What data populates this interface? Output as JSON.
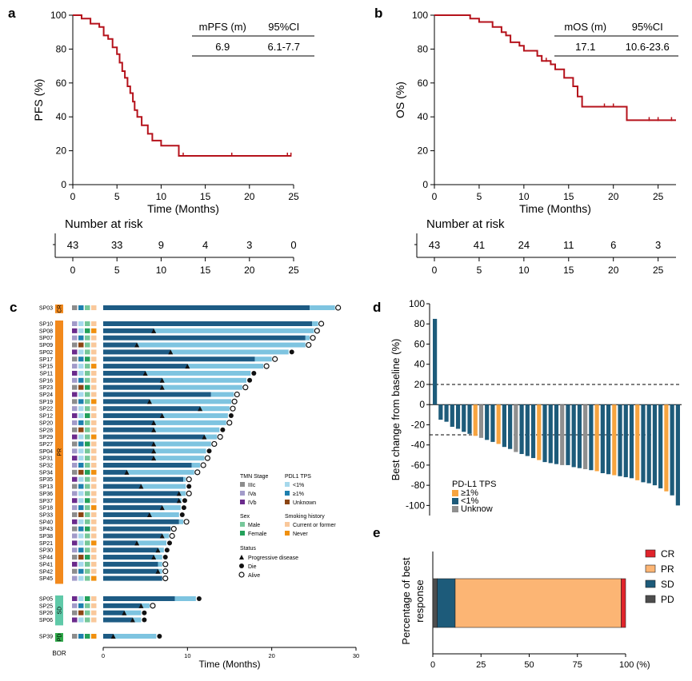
{
  "panels": {
    "a": "a",
    "b": "b",
    "c": "c",
    "d": "d",
    "e": "e"
  },
  "chart_data": [
    {
      "id": "a",
      "type": "line",
      "ylabel": "PFS (%)",
      "xlabel": "Time (Months)",
      "xlim": [
        0,
        25
      ],
      "ylim": [
        0,
        100
      ],
      "xticks": [
        0,
        5,
        10,
        15,
        20,
        25
      ],
      "yticks": [
        0,
        20,
        40,
        60,
        80,
        100
      ],
      "color": "#b5121b",
      "steps": [
        [
          0,
          100
        ],
        [
          1,
          100
        ],
        [
          1,
          98
        ],
        [
          2,
          98
        ],
        [
          2,
          95
        ],
        [
          3,
          95
        ],
        [
          3,
          93
        ],
        [
          3.5,
          93
        ],
        [
          3.5,
          88
        ],
        [
          4,
          88
        ],
        [
          4,
          86
        ],
        [
          4.5,
          86
        ],
        [
          4.5,
          81
        ],
        [
          5,
          81
        ],
        [
          5,
          77
        ],
        [
          5.3,
          77
        ],
        [
          5.3,
          72
        ],
        [
          5.6,
          72
        ],
        [
          5.6,
          67
        ],
        [
          5.9,
          67
        ],
        [
          5.9,
          63
        ],
        [
          6.2,
          63
        ],
        [
          6.2,
          58
        ],
        [
          6.5,
          58
        ],
        [
          6.5,
          54
        ],
        [
          6.8,
          54
        ],
        [
          6.8,
          49
        ],
        [
          7,
          49
        ],
        [
          7,
          44
        ],
        [
          7.3,
          44
        ],
        [
          7.3,
          40
        ],
        [
          7.8,
          40
        ],
        [
          7.8,
          35
        ],
        [
          8.5,
          35
        ],
        [
          8.5,
          30
        ],
        [
          9,
          30
        ],
        [
          9,
          26
        ],
        [
          10,
          26
        ],
        [
          10,
          23
        ],
        [
          12,
          23
        ],
        [
          12,
          17
        ],
        [
          24.7,
          17
        ]
      ],
      "censored": [
        [
          12.5,
          17
        ],
        [
          18,
          17
        ],
        [
          24.3,
          17
        ],
        [
          24.7,
          17
        ]
      ],
      "table": {
        "headers": [
          "mPFS (m)",
          "95%CI"
        ],
        "values": [
          "6.9",
          "6.1-7.7"
        ]
      },
      "risk": {
        "title": "Number at risk",
        "ticks": [
          0,
          5,
          10,
          15,
          20,
          25
        ],
        "counts": [
          "43",
          "33",
          "9",
          "4",
          "3",
          "0"
        ]
      }
    },
    {
      "id": "b",
      "type": "line",
      "ylabel": "OS (%)",
      "xlabel": "Time (Months)",
      "xlim": [
        0,
        27
      ],
      "ylim": [
        0,
        100
      ],
      "xticks": [
        0,
        5,
        10,
        15,
        20,
        25
      ],
      "yticks": [
        0,
        20,
        40,
        60,
        80,
        100
      ],
      "color": "#b5121b",
      "steps": [
        [
          0,
          100
        ],
        [
          4,
          100
        ],
        [
          4,
          98
        ],
        [
          5,
          98
        ],
        [
          5,
          96
        ],
        [
          6.5,
          96
        ],
        [
          6.5,
          93
        ],
        [
          7.5,
          93
        ],
        [
          7.5,
          90
        ],
        [
          8,
          90
        ],
        [
          8,
          88
        ],
        [
          8.5,
          88
        ],
        [
          8.5,
          84
        ],
        [
          9.5,
          84
        ],
        [
          9.5,
          82
        ],
        [
          10,
          82
        ],
        [
          10,
          79
        ],
        [
          11.5,
          79
        ],
        [
          11.5,
          76
        ],
        [
          12,
          76
        ],
        [
          12,
          73
        ],
        [
          13,
          73
        ],
        [
          13,
          71
        ],
        [
          13.5,
          71
        ],
        [
          13.5,
          68
        ],
        [
          14.5,
          68
        ],
        [
          14.5,
          63
        ],
        [
          15.5,
          63
        ],
        [
          15.5,
          58
        ],
        [
          16,
          58
        ],
        [
          16,
          52
        ],
        [
          16.5,
          52
        ],
        [
          16.5,
          46
        ],
        [
          21.5,
          46
        ],
        [
          21.5,
          38
        ],
        [
          27,
          38
        ]
      ],
      "censored": [
        [
          12.5,
          73
        ],
        [
          19,
          46
        ],
        [
          20,
          46
        ],
        [
          24,
          38
        ],
        [
          25,
          38
        ],
        [
          26.5,
          38
        ]
      ],
      "table": {
        "headers": [
          "mOS (m)",
          "95%CI"
        ],
        "values": [
          "17.1",
          "10.6-23.6"
        ]
      },
      "risk": {
        "title": "Number at risk",
        "ticks": [
          0,
          5,
          10,
          15,
          20,
          25
        ],
        "counts": [
          "43",
          "41",
          "24",
          "11",
          "6",
          "3"
        ]
      }
    },
    {
      "id": "c",
      "type": "bar",
      "xlabel": "Time (Months)",
      "xlim": [
        0,
        30
      ],
      "xticks": [
        0,
        10,
        20,
        30
      ],
      "bor_label": "BOR",
      "groups": [
        {
          "label": "CR",
          "color": "#f2891c",
          "patients": [
            {
              "id": "SP03",
              "total": 27.5,
              "prog": 24.5,
              "event": "alive",
              "marker": null
            }
          ]
        },
        {
          "label": "PR",
          "color": "#f2891c",
          "patients": [
            {
              "id": "SP10",
              "total": 25.5,
              "prog": 24.8,
              "event": "alive",
              "marker": null
            },
            {
              "id": "SP08",
              "total": 25,
              "prog": 6,
              "event": "alive",
              "marker": 6
            },
            {
              "id": "SP07",
              "total": 24.5,
              "prog": 24,
              "event": "alive",
              "marker": null
            },
            {
              "id": "SP09",
              "total": 24,
              "prog": 4,
              "event": "alive",
              "marker": 4
            },
            {
              "id": "SP02",
              "total": 22,
              "prog": 8,
              "event": "die",
              "marker": 8
            },
            {
              "id": "SP17",
              "total": 20,
              "prog": 18,
              "event": "alive",
              "marker": null
            },
            {
              "id": "SP15",
              "total": 19,
              "prog": 10,
              "event": "alive",
              "marker": 10
            },
            {
              "id": "SP11",
              "total": 17.5,
              "prog": 5,
              "event": "die",
              "marker": 5
            },
            {
              "id": "SP16",
              "total": 17,
              "prog": 7,
              "event": "die",
              "marker": 7
            },
            {
              "id": "SP23",
              "total": 16.5,
              "prog": 7,
              "event": "alive",
              "marker": 7
            },
            {
              "id": "SP24",
              "total": 15.5,
              "prog": 12.8,
              "event": "alive",
              "marker": null
            },
            {
              "id": "SP19",
              "total": 15.2,
              "prog": 5.5,
              "event": "alive",
              "marker": 5.5
            },
            {
              "id": "SP22",
              "total": 15,
              "prog": 11.5,
              "event": "alive",
              "marker": 11.5
            },
            {
              "id": "SP12",
              "total": 14.8,
              "prog": 7,
              "event": "die",
              "marker": 7
            },
            {
              "id": "SP20",
              "total": 14.6,
              "prog": 6,
              "event": "alive",
              "marker": 6
            },
            {
              "id": "SP28",
              "total": 13.8,
              "prog": 6,
              "event": "die",
              "marker": 6
            },
            {
              "id": "SP29",
              "total": 13.5,
              "prog": 12,
              "event": "alive",
              "marker": 12
            },
            {
              "id": "SP27",
              "total": 12.8,
              "prog": 6,
              "event": "alive",
              "marker": 6
            },
            {
              "id": "SP04",
              "total": 12.2,
              "prog": 6,
              "event": "die",
              "marker": 6
            },
            {
              "id": "SP31",
              "total": 12,
              "prog": 6,
              "event": "alive",
              "marker": 6
            },
            {
              "id": "SP32",
              "total": 11.5,
              "prog": 10.5,
              "event": "alive",
              "marker": null
            },
            {
              "id": "SP34",
              "total": 10.8,
              "prog": 2.8,
              "event": "alive",
              "marker": 2.8
            },
            {
              "id": "SP35",
              "total": 9.8,
              "prog": 9.5,
              "event": "alive",
              "marker": null
            },
            {
              "id": "SP13",
              "total": 9.8,
              "prog": 4.5,
              "event": "die",
              "marker": 4.5
            },
            {
              "id": "SP36",
              "total": 9.8,
              "prog": 9,
              "event": "alive",
              "marker": 9
            },
            {
              "id": "SP37",
              "total": 9.3,
              "prog": 9,
              "event": "die",
              "marker": 9
            },
            {
              "id": "SP18",
              "total": 9.2,
              "prog": 7,
              "event": "die",
              "marker": 7
            },
            {
              "id": "SP33",
              "total": 9,
              "prog": 5.5,
              "event": "die",
              "marker": 5.5
            },
            {
              "id": "SP40",
              "total": 9.5,
              "prog": 9,
              "event": "alive",
              "marker": null
            },
            {
              "id": "SP43",
              "total": 8,
              "prog": 8,
              "event": "alive",
              "marker": null
            },
            {
              "id": "SP38",
              "total": 7.8,
              "prog": 7,
              "event": "alive",
              "marker": 7
            },
            {
              "id": "SP21",
              "total": 7.5,
              "prog": 4,
              "event": "die",
              "marker": 4
            },
            {
              "id": "SP30",
              "total": 7.2,
              "prog": 6.5,
              "event": "die",
              "marker": 6.5
            },
            {
              "id": "SP44",
              "total": 7,
              "prog": 6,
              "event": "die",
              "marker": 6
            },
            {
              "id": "SP41",
              "total": 7,
              "prog": 6.5,
              "event": "alive",
              "marker": null
            },
            {
              "id": "SP42",
              "total": 7,
              "prog": 6.5,
              "event": "alive",
              "marker": 6.5
            },
            {
              "id": "SP45",
              "total": 7,
              "prog": 7,
              "event": "alive",
              "marker": null
            }
          ]
        },
        {
          "label": "SD",
          "color": "#5fc9a8",
          "patients": [
            {
              "id": "SP05",
              "total": 11,
              "prog": 8.5,
              "event": "die",
              "marker": null
            },
            {
              "id": "SP25",
              "total": 5.5,
              "prog": 4.5,
              "event": "alive",
              "marker": 4.5
            },
            {
              "id": "SP26",
              "total": 4.5,
              "prog": 2.5,
              "event": "die",
              "marker": 2.5
            },
            {
              "id": "SP06",
              "total": 4.5,
              "prog": 3.5,
              "event": "die",
              "marker": 3.5
            }
          ]
        },
        {
          "label": "PD",
          "color": "#2eaa4a",
          "patients": [
            {
              "id": "SP39",
              "total": 6.3,
              "prog": 1.2,
              "event": "die",
              "marker": 1.2
            }
          ]
        }
      ],
      "legend": {
        "tmn_title": "TMN Stage",
        "tmn": [
          "IIIc",
          "IVa",
          "IVb"
        ],
        "pdl1_title": "PDL1 TPS",
        "pdl1": [
          "<1%",
          "≥1%",
          "Unknown"
        ],
        "sex_title": "Sex",
        "sex": [
          "Male",
          "Female"
        ],
        "smoke_title": "Smoking history",
        "smoke": [
          "Current or former",
          "Never"
        ],
        "status_title": "Status",
        "status": [
          "Progressive disease",
          "Die",
          "Alive"
        ]
      },
      "colors": {
        "bar_dark": "#1d5b84",
        "bar_light": "#7ec4e0",
        "iiic": "#8c8c8c",
        "iva": "#a29bc9",
        "ivb": "#6b2b8c",
        "pdl1_low": "#a6d8ec",
        "pdl1_high": "#1d7fae",
        "pdl1_unk": "#8b4513",
        "male": "#76c79a",
        "female": "#23a05a",
        "smoke_cur": "#f9c89b",
        "smoke_never": "#f0900f"
      }
    },
    {
      "id": "d",
      "type": "bar",
      "ylabel": "Best change from baseline (%)",
      "ylim": [
        -110,
        100
      ],
      "yticks": [
        100,
        80,
        60,
        40,
        20,
        0,
        -20,
        -40,
        -60,
        -80,
        -100
      ],
      "ref_lines": [
        20,
        -30
      ],
      "values": [
        85,
        -15,
        -17,
        -22,
        -24,
        -27,
        -29,
        -31,
        -33,
        -35,
        -37,
        -39,
        -42,
        -44,
        -47,
        -49,
        -51,
        -53,
        -55,
        -57,
        -58,
        -59,
        -60,
        -60,
        -62,
        -63,
        -64,
        -65,
        -66,
        -68,
        -69,
        -70,
        -71,
        -72,
        -73,
        -75,
        -77,
        -78,
        -80,
        -83,
        -86,
        -90,
        -100
      ],
      "status": [
        "<1%",
        "<1%",
        "<1%",
        "<1%",
        "<1%",
        "<1%",
        "<1%",
        "≥1%",
        "Unknow",
        "<1%",
        "<1%",
        "≥1%",
        "<1%",
        "<1%",
        "Unknow",
        "<1%",
        "<1%",
        "<1%",
        "≥1%",
        "<1%",
        "<1%",
        "<1%",
        "Unknow",
        "<1%",
        "<1%",
        "<1%",
        "Unknow",
        "<1%",
        "≥1%",
        "<1%",
        "<1%",
        "≥1%",
        "<1%",
        "<1%",
        "<1%",
        "≥1%",
        "<1%",
        "<1%",
        "<1%",
        "<1%",
        "≥1%",
        "<1%",
        "<1%"
      ],
      "legend_title": "PD-L1 TPS",
      "legend": [
        "≥1%",
        "<1%",
        "Unknow"
      ],
      "colors": {
        "≥1%": "#f7a440",
        "<1%": "#1d5b7a",
        "Unknow": "#8f8f8f"
      }
    },
    {
      "id": "e",
      "type": "bar",
      "ylabel": "Percentage of best response",
      "xticks": [
        "0",
        "25",
        "50",
        "75",
        "100 (%)"
      ],
      "segments": [
        {
          "name": "PD",
          "value": 2.3,
          "color": "#4d4d4d"
        },
        {
          "name": "SD",
          "value": 9.3,
          "color": "#1d5b7a"
        },
        {
          "name": "PR",
          "value": 86.1,
          "color": "#fcb574"
        },
        {
          "name": "CR",
          "value": 2.3,
          "color": "#e0242b"
        }
      ],
      "legend_order": [
        "CR",
        "PR",
        "SD",
        "PD"
      ]
    }
  ]
}
